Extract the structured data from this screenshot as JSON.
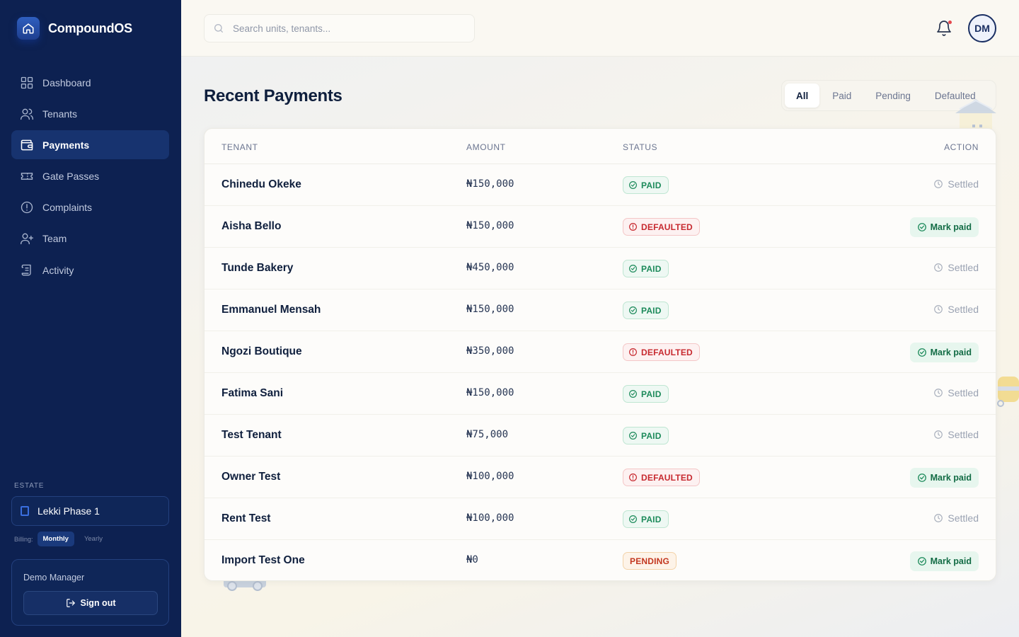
{
  "app": {
    "name": "CompoundOS",
    "brand_color": "#0d2151"
  },
  "sidebar": {
    "items": [
      {
        "label": "Dashboard",
        "icon": "grid-icon"
      },
      {
        "label": "Tenants",
        "icon": "users-icon"
      },
      {
        "label": "Payments",
        "icon": "wallet-icon",
        "active": true
      },
      {
        "label": "Gate Passes",
        "icon": "ticket-icon"
      },
      {
        "label": "Complaints",
        "icon": "alert-circle-icon"
      },
      {
        "label": "Team",
        "icon": "user-plus-icon"
      },
      {
        "label": "Activity",
        "icon": "scroll-icon"
      }
    ],
    "estate_label": "ESTATE",
    "estate_name": "Lekki Phase 1",
    "billing_label": "Billing:",
    "billing_monthly": "Monthly",
    "billing_yearly": "Yearly",
    "billing_selected": "Monthly",
    "user_name": "Demo Manager",
    "sign_out": "Sign out"
  },
  "topbar": {
    "search_placeholder": "Search units, tenants...",
    "avatar_initials": "DM",
    "has_notification": true
  },
  "page": {
    "title": "Recent Payments",
    "filters": [
      "All",
      "Paid",
      "Pending",
      "Defaulted"
    ],
    "active_filter": "All"
  },
  "table": {
    "columns": [
      "TENANT",
      "AMOUNT",
      "STATUS",
      "ACTION"
    ],
    "rows": [
      {
        "tenant": "Chinedu Okeke",
        "amount": "₦150,000",
        "status": "PAID",
        "action": "Settled"
      },
      {
        "tenant": "Aisha Bello",
        "amount": "₦150,000",
        "status": "DEFAULTED",
        "action": "Mark paid"
      },
      {
        "tenant": "Tunde Bakery",
        "amount": "₦450,000",
        "status": "PAID",
        "action": "Settled"
      },
      {
        "tenant": "Emmanuel Mensah",
        "amount": "₦150,000",
        "status": "PAID",
        "action": "Settled"
      },
      {
        "tenant": "Ngozi Boutique",
        "amount": "₦350,000",
        "status": "DEFAULTED",
        "action": "Mark paid"
      },
      {
        "tenant": "Fatima Sani",
        "amount": "₦150,000",
        "status": "PAID",
        "action": "Settled"
      },
      {
        "tenant": "Test Tenant",
        "amount": "₦75,000",
        "status": "PAID",
        "action": "Settled"
      },
      {
        "tenant": "Owner Test",
        "amount": "₦100,000",
        "status": "DEFAULTED",
        "action": "Mark paid"
      },
      {
        "tenant": "Rent Test",
        "amount": "₦100,000",
        "status": "PAID",
        "action": "Settled"
      },
      {
        "tenant": "Import Test One",
        "amount": "₦0",
        "status": "PENDING",
        "action": "Mark paid"
      }
    ]
  },
  "colors": {
    "paid": "#1c8a5a",
    "defaulted": "#c7292f",
    "pending": "#c3371f",
    "mark_paid_bg": "#e7f6ee"
  }
}
